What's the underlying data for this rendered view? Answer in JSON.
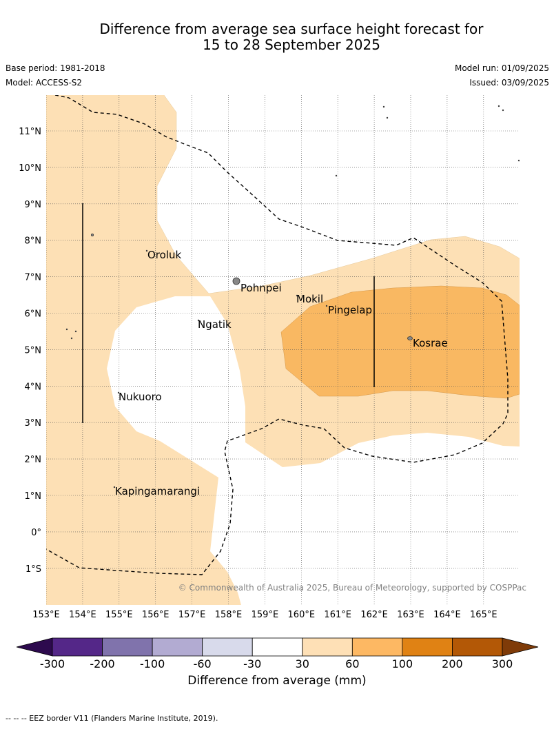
{
  "title": {
    "line1": "Difference from average sea surface height forecast for",
    "line2": "15 to 28 September 2025"
  },
  "meta": {
    "base_period": "Base period: 1981-2018",
    "model": "Model: ACCESS-S2",
    "model_run": "Model run: 01/09/2025",
    "issued": "Issued: 03/09/2025"
  },
  "map": {
    "lon_labels": [
      "153°E",
      "154°E",
      "155°E",
      "156°E",
      "157°E",
      "158°E",
      "159°E",
      "160°E",
      "161°E",
      "162°E",
      "163°E",
      "164°E",
      "165°E"
    ],
    "lat_labels": [
      "11°N",
      "10°N",
      "9°N",
      "8°N",
      "7°N",
      "6°N",
      "5°N",
      "4°N",
      "3°N",
      "2°N",
      "1°N",
      "0°",
      "1°S"
    ],
    "places": [
      "Oroluk",
      "Pohnpei",
      "Mokil",
      "Pingelap",
      "Ngatik",
      "Kosrae",
      "Nukuoro",
      "Kapingamarangi"
    ],
    "copyright": "© Commonwealth of Australia 2025, Bureau of Meteorology, supported by COSPPac",
    "fill_colors": {
      "30_to_60": "#fde0b5",
      "60_to_100": "#f9b862"
    }
  },
  "colorbar": {
    "ticks": [
      "-300",
      "-200",
      "-100",
      "-60",
      "-30",
      "30",
      "60",
      "100",
      "200",
      "300"
    ],
    "colors": [
      "#2d0a4e",
      "#542788",
      "#8073ac",
      "#b2abd2",
      "#d8daeb",
      "#ffffff",
      "#fee0b6",
      "#fdb863",
      "#e08214",
      "#b35806",
      "#7f3b08"
    ],
    "label": "Difference from average (mm)"
  },
  "footnote": "-- -- -- EEZ border V11 (Flanders Marine Institute, 2019)."
}
